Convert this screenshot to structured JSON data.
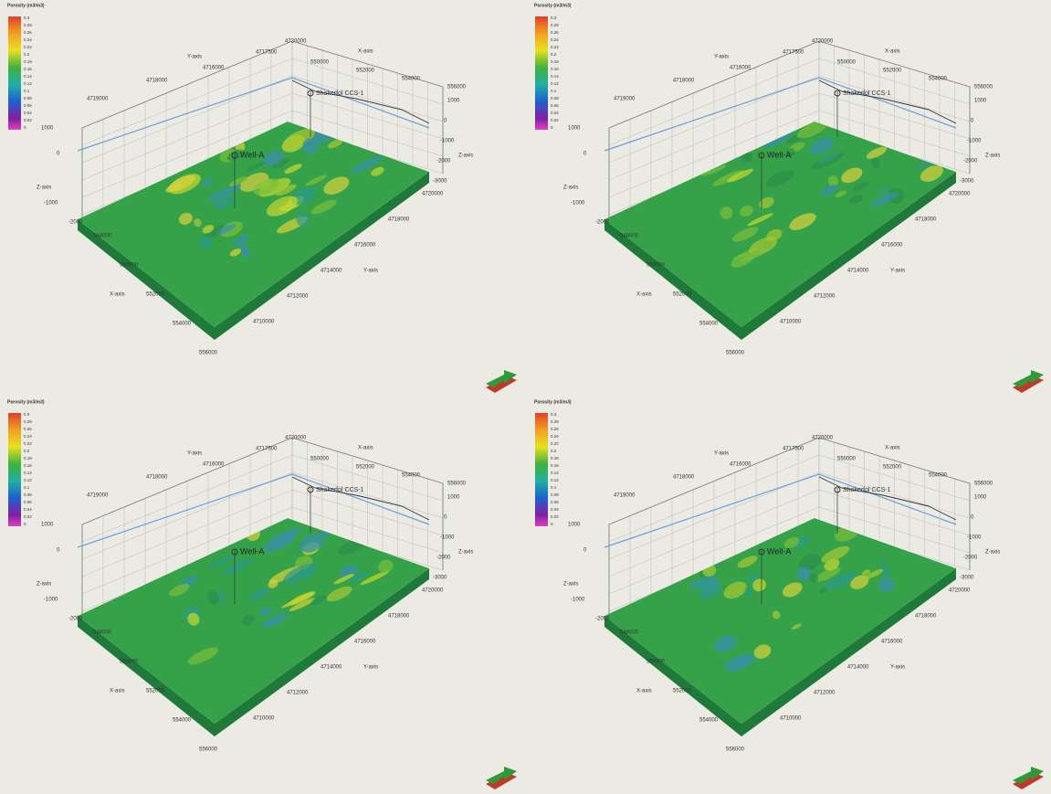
{
  "legend": {
    "title": "Porosity (m3/m3)",
    "ticks": [
      0.3,
      0.28,
      0.26,
      0.24,
      0.22,
      0.2,
      0.18,
      0.16,
      0.14,
      0.12,
      0.1,
      0.08,
      0.06,
      0.04,
      0.02,
      0
    ]
  },
  "axes": {
    "x_label": "X-axis",
    "y_label": "Y-axis",
    "z_label": "Z-axis",
    "x_ticks": [
      548000,
      550000,
      552000,
      554000,
      556000
    ],
    "y_ticks": [
      4720000,
      4718000,
      4716000,
      4714000,
      4712000,
      4710000
    ],
    "z_ticks": [
      1000,
      0,
      -1000,
      -2000,
      -3000
    ],
    "x_top_ticks": [
      550000,
      552000,
      554000,
      556000
    ],
    "y_top_ticks": [
      4719000,
      4718000,
      4716000,
      4717500,
      4720000
    ]
  },
  "wells": [
    "Well-A",
    "Shakerfol CCS-1"
  ]
}
